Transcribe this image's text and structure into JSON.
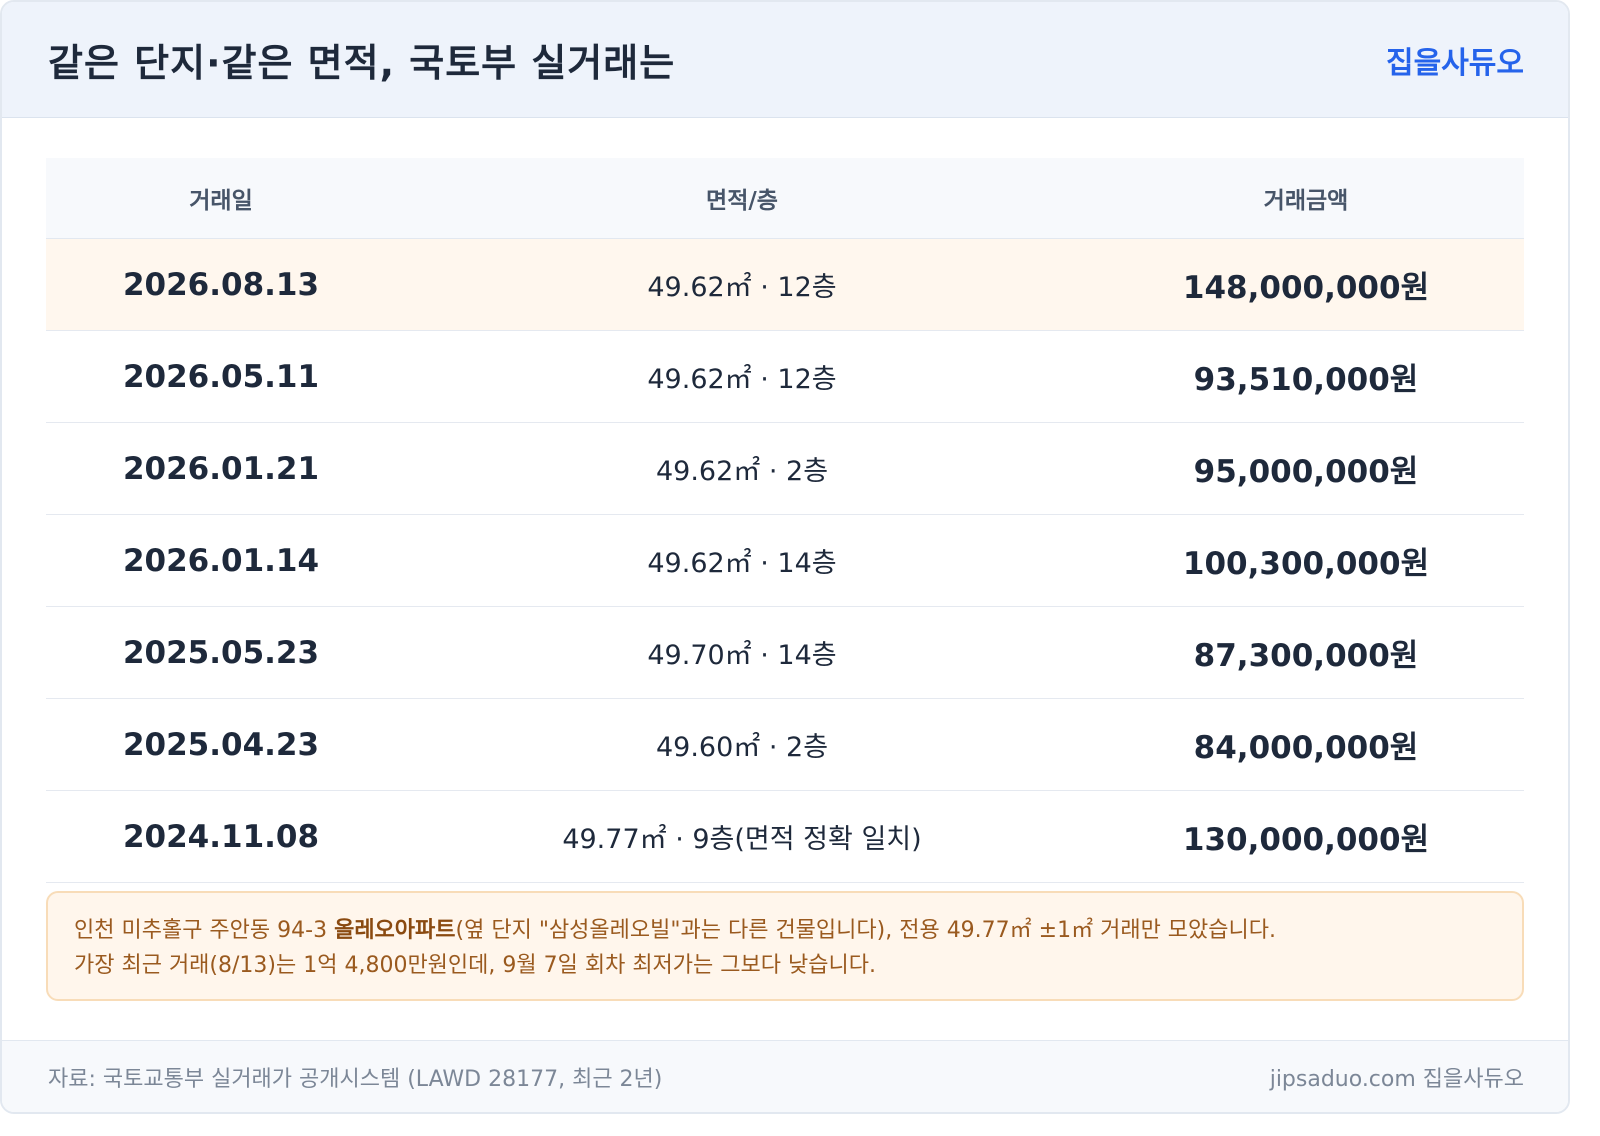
{
  "header": {
    "title": "같은 단지·같은 면적, 국토부 실거래는",
    "brand": "집을사듀오"
  },
  "table": {
    "columns": [
      "거래일",
      "면적/층",
      "거래금액"
    ],
    "rows": [
      {
        "date": "2026.08.13",
        "area": "49.62㎡ · 12층",
        "price": "148,000,000원",
        "highlight": true
      },
      {
        "date": "2026.05.11",
        "area": "49.62㎡ · 12층",
        "price": "93,510,000원",
        "highlight": false
      },
      {
        "date": "2026.01.21",
        "area": "49.62㎡ · 2층",
        "price": "95,000,000원",
        "highlight": false
      },
      {
        "date": "2026.01.14",
        "area": "49.62㎡ · 14층",
        "price": "100,300,000원",
        "highlight": false
      },
      {
        "date": "2025.05.23",
        "area": "49.70㎡ · 14층",
        "price": "87,300,000원",
        "highlight": false
      },
      {
        "date": "2025.04.23",
        "area": "49.60㎡ · 2층",
        "price": "84,000,000원",
        "highlight": false
      },
      {
        "date": "2024.11.08",
        "area": "49.77㎡ · 9층(면적 정확 일치)",
        "price": "130,000,000원",
        "highlight": false
      }
    ]
  },
  "note": {
    "line1_prefix": "인천 미추홀구 주안동 94-3 ",
    "line1_bold": "올레오아파트",
    "line1_suffix": "(옆 단지 \"삼성올레오빌\"과는 다른 건물입니다), 전용 49.77㎡ ±1㎡ 거래만 모았습니다.",
    "line2": "가장 최근 거래(8/13)는 1억 4,800만원인데, 9월 7일 회차 최저가는 그보다 낮습니다."
  },
  "footer": {
    "source": "자료: 국토교통부 실거래가 공개시스템 (LAWD 28177, 최근 2년)",
    "site": "jipsaduo.com 집을사듀오"
  }
}
